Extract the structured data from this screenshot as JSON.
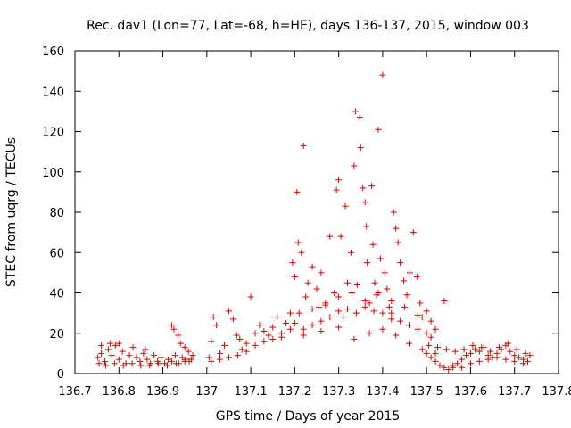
{
  "chart_data": {
    "type": "scatter",
    "title": "Rec. dav1 (Lon=77, Lat=-68, h=HE), days 136-137, 2015, window 003",
    "xlabel": "GPS time / Days of year 2015",
    "ylabel": "STEC from uqrg / TECUs",
    "xlim": [
      136.7,
      137.8
    ],
    "ylim": [
      0,
      160
    ],
    "xticks": [
      "136.7",
      "136.8",
      "136.9",
      "137",
      "137.1",
      "137.2",
      "137.3",
      "137.4",
      "137.5",
      "137.6",
      "137.7",
      "137.8"
    ],
    "yticks": [
      "0",
      "20",
      "40",
      "60",
      "80",
      "100",
      "120",
      "140",
      "160"
    ],
    "grid": false,
    "marker": "+",
    "color": "#e00000",
    "series": [
      {
        "name": "",
        "points": [
          [
            136.752,
            8
          ],
          [
            136.76,
            10
          ],
          [
            136.768,
            6
          ],
          [
            136.776,
            12
          ],
          [
            136.784,
            9
          ],
          [
            136.792,
            14
          ],
          [
            136.8,
            7
          ],
          [
            136.808,
            11
          ],
          [
            136.816,
            5
          ],
          [
            136.824,
            9
          ],
          [
            136.832,
            13
          ],
          [
            136.84,
            8
          ],
          [
            136.848,
            6
          ],
          [
            136.856,
            10
          ],
          [
            136.864,
            7
          ],
          [
            136.872,
            5
          ],
          [
            136.88,
            9
          ],
          [
            136.888,
            6
          ],
          [
            136.896,
            8
          ],
          [
            136.904,
            5
          ],
          [
            136.912,
            7
          ],
          [
            136.92,
            6
          ],
          [
            136.928,
            9
          ],
          [
            136.936,
            5
          ],
          [
            136.944,
            8
          ],
          [
            136.952,
            7
          ],
          [
            136.96,
            6
          ],
          [
            136.968,
            9
          ],
          [
            136.755,
            5
          ],
          [
            136.77,
            4
          ],
          [
            136.79,
            5
          ],
          [
            136.81,
            4
          ],
          [
            136.83,
            5
          ],
          [
            136.85,
            4
          ],
          [
            136.87,
            4
          ],
          [
            136.89,
            5
          ],
          [
            136.91,
            4
          ],
          [
            136.93,
            5
          ],
          [
            136.95,
            6
          ],
          [
            136.965,
            7
          ],
          [
            136.76,
            14
          ],
          [
            136.78,
            15
          ],
          [
            136.8,
            15
          ],
          [
            136.86,
            12
          ],
          [
            136.92,
            24
          ],
          [
            136.925,
            22
          ],
          [
            136.935,
            19
          ],
          [
            136.94,
            15
          ],
          [
            136.95,
            13
          ],
          [
            136.958,
            11
          ],
          [
            137.005,
            8
          ],
          [
            137.01,
            16
          ],
          [
            137.015,
            28
          ],
          [
            137.022,
            24
          ],
          [
            137.03,
            10
          ],
          [
            137.04,
            14
          ],
          [
            137.05,
            31
          ],
          [
            137.06,
            27
          ],
          [
            137.068,
            19
          ],
          [
            137.075,
            17
          ],
          [
            137.08,
            12
          ],
          [
            137.09,
            15
          ],
          [
            137.1,
            38
          ],
          [
            137.11,
            20
          ],
          [
            137.12,
            24
          ],
          [
            137.13,
            21
          ],
          [
            137.14,
            19
          ],
          [
            137.15,
            23
          ],
          [
            137.16,
            28
          ],
          [
            137.17,
            18
          ],
          [
            137.18,
            25
          ],
          [
            137.19,
            30
          ],
          [
            137.01,
            6
          ],
          [
            137.03,
            7
          ],
          [
            137.05,
            8
          ],
          [
            137.07,
            9
          ],
          [
            137.09,
            11
          ],
          [
            137.11,
            14
          ],
          [
            137.13,
            16
          ],
          [
            137.15,
            17
          ],
          [
            137.17,
            20
          ],
          [
            137.19,
            22
          ],
          [
            137.195,
            55
          ],
          [
            137.2,
            48
          ],
          [
            137.205,
            90
          ],
          [
            137.208,
            65
          ],
          [
            137.215,
            60
          ],
          [
            137.22,
            113
          ],
          [
            137.225,
            38
          ],
          [
            137.23,
            45
          ],
          [
            137.24,
            53
          ],
          [
            137.25,
            42
          ],
          [
            137.255,
            33
          ],
          [
            137.26,
            50
          ],
          [
            137.27,
            35
          ],
          [
            137.28,
            68
          ],
          [
            137.29,
            40
          ],
          [
            137.295,
            91
          ],
          [
            137.3,
            96
          ],
          [
            137.305,
            68
          ],
          [
            137.31,
            28
          ],
          [
            137.315,
            83
          ],
          [
            137.32,
            45
          ],
          [
            137.328,
            60
          ],
          [
            137.335,
            103
          ],
          [
            137.338,
            130
          ],
          [
            137.342,
            44
          ],
          [
            137.348,
            127
          ],
          [
            137.35,
            112
          ],
          [
            137.355,
            92
          ],
          [
            137.36,
            85
          ],
          [
            137.363,
            73
          ],
          [
            137.365,
            55
          ],
          [
            137.37,
            35
          ],
          [
            137.375,
            93
          ],
          [
            137.378,
            64
          ],
          [
            137.382,
            45
          ],
          [
            137.386,
            39
          ],
          [
            137.39,
            121
          ],
          [
            137.395,
            57
          ],
          [
            137.4,
            148
          ],
          [
            137.405,
            50
          ],
          [
            137.41,
            42
          ],
          [
            137.415,
            33
          ],
          [
            137.42,
            30
          ],
          [
            137.425,
            80
          ],
          [
            137.43,
            72
          ],
          [
            137.435,
            65
          ],
          [
            137.44,
            55
          ],
          [
            137.448,
            46
          ],
          [
            137.455,
            39
          ],
          [
            137.462,
            50
          ],
          [
            137.47,
            70
          ],
          [
            137.478,
            48
          ],
          [
            137.485,
            35
          ],
          [
            137.49,
            28
          ],
          [
            137.5,
            31
          ],
          [
            137.51,
            26
          ],
          [
            137.52,
            22
          ],
          [
            137.54,
            36
          ],
          [
            137.2,
            25
          ],
          [
            137.22,
            22
          ],
          [
            137.24,
            24
          ],
          [
            137.26,
            26
          ],
          [
            137.28,
            28
          ],
          [
            137.3,
            31
          ],
          [
            137.32,
            32
          ],
          [
            137.34,
            30
          ],
          [
            137.36,
            33
          ],
          [
            137.38,
            31
          ],
          [
            137.4,
            30
          ],
          [
            137.42,
            27
          ],
          [
            137.44,
            26
          ],
          [
            137.46,
            24
          ],
          [
            137.48,
            22
          ],
          [
            137.5,
            20
          ],
          [
            137.21,
            30
          ],
          [
            137.24,
            32
          ],
          [
            137.27,
            34
          ],
          [
            137.3,
            38
          ],
          [
            137.33,
            40
          ],
          [
            137.36,
            36
          ],
          [
            137.39,
            40
          ],
          [
            137.42,
            36
          ],
          [
            137.45,
            33
          ],
          [
            137.48,
            29
          ],
          [
            137.51,
            18
          ],
          [
            137.22,
            19
          ],
          [
            137.26,
            21
          ],
          [
            137.3,
            23
          ],
          [
            137.335,
            17
          ],
          [
            137.37,
            20
          ],
          [
            137.4,
            22
          ],
          [
            137.43,
            19
          ],
          [
            137.46,
            15
          ],
          [
            137.49,
            12
          ],
          [
            137.52,
            10
          ],
          [
            137.5,
            10
          ],
          [
            137.51,
            8
          ],
          [
            137.52,
            6
          ],
          [
            137.53,
            4
          ],
          [
            137.54,
            3
          ],
          [
            137.55,
            2
          ],
          [
            137.56,
            3
          ],
          [
            137.57,
            5
          ],
          [
            137.58,
            7
          ],
          [
            137.59,
            9
          ],
          [
            137.6,
            10
          ],
          [
            137.61,
            12
          ],
          [
            137.62,
            11
          ],
          [
            137.63,
            13
          ],
          [
            137.64,
            9
          ],
          [
            137.65,
            8
          ],
          [
            137.66,
            10
          ],
          [
            137.67,
            12
          ],
          [
            137.68,
            14
          ],
          [
            137.69,
            11
          ],
          [
            137.7,
            9
          ],
          [
            137.71,
            8
          ],
          [
            137.72,
            7
          ],
          [
            137.73,
            6
          ],
          [
            137.505,
            14
          ],
          [
            137.525,
            13
          ],
          [
            137.545,
            12
          ],
          [
            137.565,
            11
          ],
          [
            137.585,
            12
          ],
          [
            137.605,
            14
          ],
          [
            137.625,
            13
          ],
          [
            137.645,
            11
          ],
          [
            137.665,
            13
          ],
          [
            137.685,
            15
          ],
          [
            137.705,
            12
          ],
          [
            137.725,
            10
          ],
          [
            137.56,
            4
          ],
          [
            137.58,
            3
          ],
          [
            137.6,
            5
          ],
          [
            137.62,
            6
          ],
          [
            137.64,
            7
          ],
          [
            137.66,
            8
          ],
          [
            137.68,
            7
          ],
          [
            137.7,
            6
          ],
          [
            137.72,
            5
          ],
          [
            137.735,
            9
          ]
        ]
      }
    ]
  }
}
